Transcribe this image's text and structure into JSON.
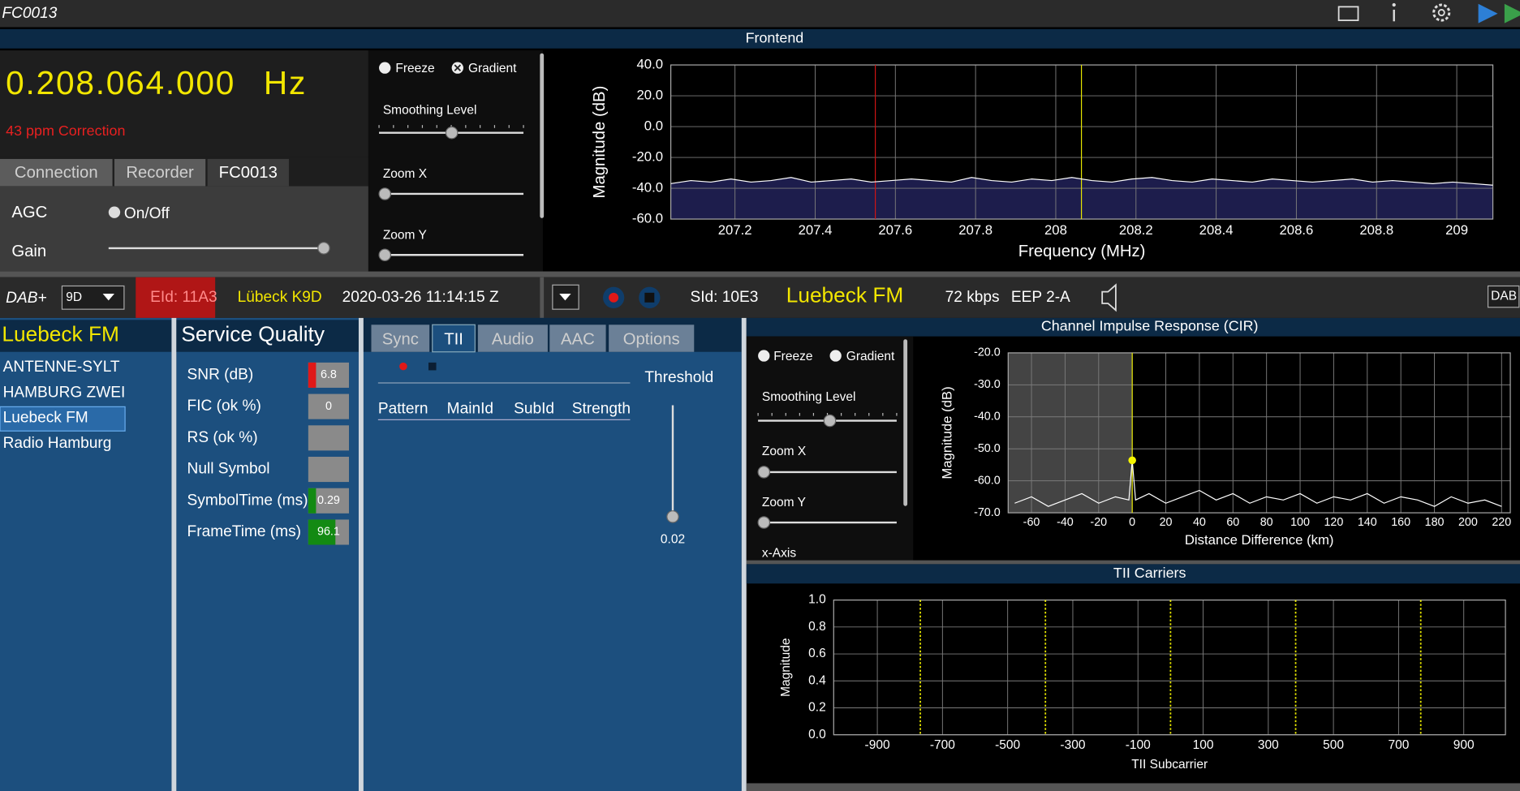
{
  "window": {
    "title": "FC0013"
  },
  "frontend": {
    "title": "Frontend",
    "frequency": "0.208.064.000",
    "unit": "Hz",
    "correction": "43 ppm Correction",
    "tabs": [
      "Connection",
      "Recorder",
      "FC0013"
    ],
    "active_tab": 2,
    "agc": "AGC",
    "agc_toggle": "On/Off",
    "gain": "Gain",
    "freeze": "Freeze",
    "gradient": "Gradient",
    "smoothing": "Smoothing Level",
    "zoom_x": "Zoom X",
    "zoom_y": "Zoom Y"
  },
  "status": {
    "mode": "DAB+",
    "channel": "9D",
    "eid": "EId: 11A3",
    "ensemble": "Lübeck K9D",
    "datetime": "2020-03-26  11:14:15 Z",
    "sid": "SId: 10E3",
    "service": "Luebeck FM",
    "bitrate": "72 kbps",
    "protection": "EEP 2-A",
    "badge": "DAB"
  },
  "services": {
    "header": "Luebeck FM",
    "items": [
      "ANTENNE-SYLT",
      "HAMBURG ZWEI",
      "Luebeck FM",
      "Radio Hamburg"
    ],
    "selected": 2
  },
  "quality": {
    "title": "Service Quality",
    "rows": [
      {
        "label": "SNR (dB)",
        "value": 6.8,
        "indicator": "#e01818"
      },
      {
        "label": "FIC (ok %)",
        "value": 0
      },
      {
        "label": "RS (ok %)"
      },
      {
        "label": "Null Symbol"
      },
      {
        "label": "SymbolTime (ms)",
        "value": 0.29,
        "indicator": "#138a13"
      },
      {
        "label": "FrameTime (ms)",
        "value": 96.1,
        "indicator": "#138a13"
      }
    ]
  },
  "tii": {
    "tabs": [
      "Sync",
      "TII",
      "Audio",
      "AAC",
      "Options"
    ],
    "active_tab": 1,
    "columns": [
      "Pattern",
      "MainId",
      "SubId",
      "Strength"
    ],
    "threshold_label": "Threshold",
    "threshold": 0.02
  },
  "cir_controls": {
    "title": "Channel Impulse Response (CIR)",
    "freeze": "Freeze",
    "gradient": "Gradient",
    "smoothing": "Smoothing Level",
    "zoom_x": "Zoom X",
    "zoom_y": "Zoom Y",
    "x_axis": "x-Axis"
  },
  "carriers_title": "TII Carriers",
  "chart_data": [
    {
      "type": "line",
      "x_label": "Frequency (MHz)",
      "y_label": "Magnitude (dB)",
      "xlim": [
        207.04,
        209.09
      ],
      "ylim": [
        -60,
        40
      ],
      "grid": true,
      "xticks": [
        207.2,
        207.4,
        207.6,
        207.8,
        208,
        208.2,
        208.4,
        208.6,
        208.8,
        209
      ],
      "yticks": [
        {
          "value": 40,
          "label": "40.0"
        },
        {
          "value": 20,
          "label": "20.0"
        },
        {
          "value": 0,
          "label": "0.0"
        },
        {
          "value": -20,
          "label": "-20.0"
        },
        {
          "value": -40,
          "label": "-40.0"
        },
        {
          "value": -60,
          "label": "-60.0"
        }
      ],
      "series": [
        {
          "color": "#ffffff",
          "fill": "#1d1d4c",
          "x": [
            207.04,
            207.09,
            207.14,
            207.19,
            207.24,
            207.29,
            207.34,
            207.39,
            207.44,
            207.49,
            207.54,
            207.59,
            207.64,
            207.69,
            207.74,
            207.79,
            207.84,
            207.89,
            207.94,
            207.99,
            208.04,
            208.09,
            208.14,
            208.19,
            208.24,
            208.29,
            208.34,
            208.39,
            208.44,
            208.49,
            208.54,
            208.59,
            208.64,
            208.69,
            208.74,
            208.79,
            208.84,
            208.89,
            208.94,
            208.99,
            209.04,
            209.09
          ],
          "values": [
            -37,
            -35,
            -36,
            -34,
            -36,
            -35,
            -33,
            -36,
            -35,
            -34,
            -36,
            -35,
            -34,
            -35,
            -36,
            -33,
            -35,
            -36,
            -34,
            -35,
            -33,
            -35,
            -36,
            -34,
            -33,
            -35,
            -36,
            -34,
            -35,
            -36,
            -34,
            -35,
            -36,
            -35,
            -34,
            -36,
            -35,
            -36,
            -37,
            -36,
            -37,
            -38
          ]
        }
      ],
      "markers": [
        {
          "x": 207.55,
          "color": "#d01414"
        },
        {
          "x": 208.064,
          "color": "#e6e600"
        }
      ]
    },
    {
      "type": "line",
      "x_label": "Distance Difference (km)",
      "y_label": "Magnitude (dB)",
      "xlim": [
        -73.9,
        225.2
      ],
      "ylim": [
        -70,
        -20
      ],
      "grid": true,
      "shaded_range": [
        -73.9,
        0
      ],
      "xticks": [
        -60,
        -40,
        -20,
        0,
        20,
        40,
        60,
        80,
        100,
        120,
        140,
        160,
        180,
        200,
        220
      ],
      "yticks": [
        {
          "value": -20,
          "label": "-20.0"
        },
        {
          "value": -30,
          "label": "-30.0"
        },
        {
          "value": -40,
          "label": "-40.0"
        },
        {
          "value": -50,
          "label": "-50.0"
        },
        {
          "value": -60,
          "label": "-60.0"
        },
        {
          "value": -70,
          "label": "-70.0"
        }
      ],
      "series": [
        {
          "color": "#ffffff",
          "x": [
            -70,
            -60,
            -50,
            -40,
            -30,
            -20,
            -10,
            -2,
            0,
            2,
            10,
            20,
            30,
            40,
            50,
            60,
            70,
            80,
            90,
            100,
            110,
            120,
            130,
            140,
            150,
            160,
            170,
            180,
            190,
            200,
            210,
            220
          ],
          "values": [
            -67,
            -65,
            -68,
            -66,
            -64,
            -67,
            -65,
            -66,
            -53.6,
            -66,
            -64,
            -67,
            -65,
            -63,
            -66,
            -64,
            -67,
            -65,
            -66,
            -64,
            -67,
            -65,
            -66,
            -64,
            -67,
            -65,
            -66,
            -68,
            -65,
            -67,
            -66,
            -68
          ]
        }
      ],
      "markers": [
        {
          "x": 0,
          "color": "#e6e600"
        }
      ],
      "points": [
        {
          "x": 0,
          "y": -53.6,
          "color": "#f5f500"
        }
      ]
    },
    {
      "type": "line",
      "x_label": "TII Subcarrier",
      "y_label": "Magnitude",
      "xlim": [
        -1034,
        1028
      ],
      "ylim": [
        0,
        1
      ],
      "grid": true,
      "xticks": [
        -900,
        -700,
        -500,
        -300,
        -100,
        100,
        300,
        500,
        700,
        900
      ],
      "yticks": [
        {
          "value": 0,
          "label": "0.0"
        },
        {
          "value": 0.2,
          "label": "0.2"
        },
        {
          "value": 0.4,
          "label": "0.4"
        },
        {
          "value": 0.6,
          "label": "0.6"
        },
        {
          "value": 0.8,
          "label": "0.8"
        },
        {
          "value": 1,
          "label": "1.0"
        }
      ],
      "markers": [
        {
          "x": -768,
          "color": "#e6e600",
          "dashed": true
        },
        {
          "x": -384,
          "color": "#e6e600",
          "dashed": true
        },
        {
          "x": 0,
          "color": "#e6e600",
          "dashed": true
        },
        {
          "x": 384,
          "color": "#e6e600",
          "dashed": true
        },
        {
          "x": 768,
          "color": "#e6e600",
          "dashed": true
        }
      ]
    }
  ]
}
